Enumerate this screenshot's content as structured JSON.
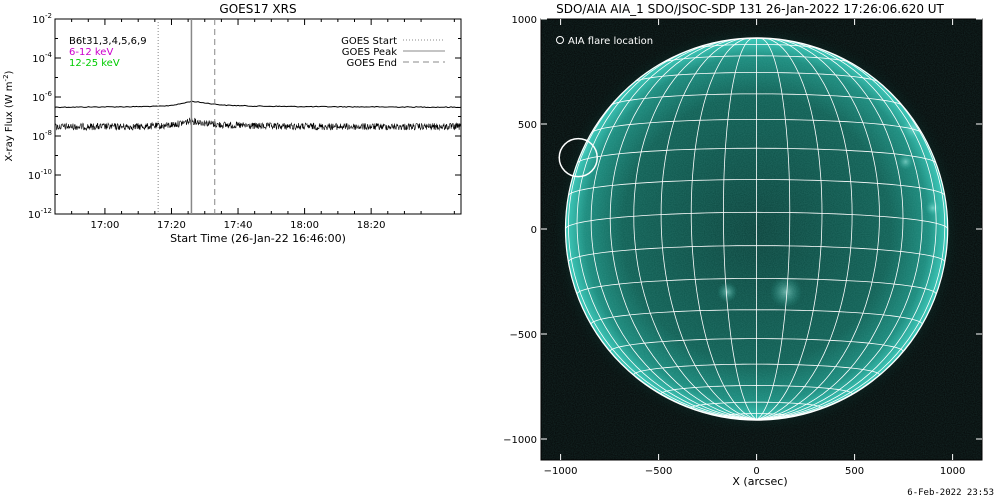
{
  "chart_data": [
    {
      "type": "line",
      "title": "GOES17 XRS",
      "xlabel": "Start Time (26-Jan-22 16:46:00)",
      "ylabel": "X-ray Flux (W m^-2)",
      "yscale": "log",
      "ylim": [
        1e-12,
        0.01
      ],
      "xlim_minutes": [
        -15,
        107
      ],
      "x_tick_labels": [
        "17:00",
        "17:20",
        "17:40",
        "18:00",
        "18:20"
      ],
      "x_tick_minutes": [
        0,
        20,
        40,
        60,
        80
      ],
      "y_tick_labels": [
        {
          "base": "10",
          "exp": "-2",
          "value": 0.01
        },
        {
          "base": "10",
          "exp": "-4",
          "value": 0.0001
        },
        {
          "base": "10",
          "exp": "-6",
          "value": 1e-06
        },
        {
          "base": "10",
          "exp": "-8",
          "value": 1e-08
        },
        {
          "base": "10",
          "exp": "-10",
          "value": 1e-10
        },
        {
          "base": "10",
          "exp": "-12",
          "value": 1e-12
        }
      ],
      "legend_left": [
        {
          "label": "B6t31,3,4,5,6,9",
          "color": "#000000"
        },
        {
          "label": "6-12 keV",
          "color": "#cc00cc"
        },
        {
          "label": "12-25 keV",
          "color": "#00cc00"
        }
      ],
      "legend_right": [
        {
          "label": "GOES Start",
          "style": "dotted"
        },
        {
          "label": "GOES Peak",
          "style": "solid"
        },
        {
          "label": "GOES End",
          "style": "dashed"
        }
      ],
      "event_lines_minutes": {
        "start": 16,
        "peak": 26,
        "end": 33
      },
      "series": [
        {
          "name": "long",
          "color": "#000000",
          "points": [
            [
              -15,
              3e-07
            ],
            [
              0,
              3.1e-07
            ],
            [
              10,
              3.2e-07
            ],
            [
              18,
              3.4e-07
            ],
            [
              22,
              4.2e-07
            ],
            [
              25,
              5.5e-07
            ],
            [
              26,
              6e-07
            ],
            [
              28,
              5.5e-07
            ],
            [
              32,
              4.5e-07
            ],
            [
              36,
              3.8e-07
            ],
            [
              45,
              3.4e-07
            ],
            [
              60,
              3.2e-07
            ],
            [
              80,
              3.1e-07
            ],
            [
              107,
              3e-07
            ]
          ]
        },
        {
          "name": "short",
          "color": "#000000",
          "noisy": true,
          "points": [
            [
              -15,
              3e-08
            ],
            [
              10,
              3e-08
            ],
            [
              18,
              3.3e-08
            ],
            [
              22,
              4.2e-08
            ],
            [
              25,
              5.5e-08
            ],
            [
              26,
              6e-08
            ],
            [
              29,
              5e-08
            ],
            [
              34,
              3.8e-08
            ],
            [
              45,
              3.2e-08
            ],
            [
              70,
              3e-08
            ],
            [
              107,
              3e-08
            ]
          ]
        }
      ]
    },
    {
      "type": "image",
      "title": "SDO/AIA AIA_1 SDO/JSOC-SDP 131 26-Jan-2022 17:26:06.620 UT",
      "xlabel": "X (arcsec)",
      "ylabel": "",
      "xlim": [
        -1100,
        1150
      ],
      "ylim": [
        -1100,
        1000
      ],
      "x_ticks": [
        -1000,
        -500,
        0,
        500,
        1000
      ],
      "y_ticks": [
        1000,
        500,
        0,
        -500,
        -1000
      ],
      "solar_radius_arcsec": 975,
      "legend": "AIA flare location",
      "flare_location_arcsec": [
        -910,
        340
      ],
      "colors": {
        "disk": "#0e5a50",
        "limb": "#38c8b8",
        "grid": "#ffffff",
        "background": "#040404"
      }
    }
  ],
  "footer": {
    "timestamp": "6-Feb-2022 23:53"
  }
}
